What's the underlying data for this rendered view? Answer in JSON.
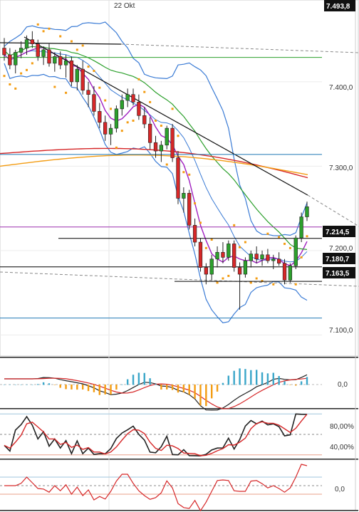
{
  "chart_data": {
    "type": "candlestick",
    "date_label": "22 Okt",
    "y_ticks": [
      "7.400,0",
      "7.300,0",
      "7.200,0",
      "7.100,0"
    ],
    "y_tick_values": [
      7400,
      7300,
      7200,
      7100
    ],
    "ylim": [
      7075,
      7497
    ],
    "price_tags": [
      {
        "label": "7.493,8",
        "value": 7493.8
      },
      {
        "label": "7.214,5",
        "value": 7214.5
      },
      {
        "label": "7.180,7",
        "value": 7180.7
      },
      {
        "label": "7.163,5",
        "value": 7163.5
      }
    ],
    "horizontal_levels": [
      {
        "value": 7429,
        "color": "#2ca02c"
      },
      {
        "value": 7314,
        "color": "#1f77b4"
      },
      {
        "value": 7228,
        "color": "#9b2fae"
      },
      {
        "value": 7214.5,
        "color": "#000000"
      },
      {
        "value": 7180.7,
        "color": "#000000"
      },
      {
        "value": 7163.5,
        "color": "#000000"
      },
      {
        "value": 7120,
        "color": "#1f77b4"
      }
    ],
    "candles": [
      {
        "o": 7440,
        "h": 7452,
        "l": 7425,
        "c": 7432
      },
      {
        "o": 7432,
        "h": 7440,
        "l": 7415,
        "c": 7420
      },
      {
        "o": 7420,
        "h": 7438,
        "l": 7410,
        "c": 7435
      },
      {
        "o": 7435,
        "h": 7448,
        "l": 7428,
        "c": 7440
      },
      {
        "o": 7440,
        "h": 7455,
        "l": 7432,
        "c": 7450
      },
      {
        "o": 7450,
        "h": 7460,
        "l": 7440,
        "c": 7445
      },
      {
        "o": 7445,
        "h": 7450,
        "l": 7425,
        "c": 7430
      },
      {
        "o": 7430,
        "h": 7442,
        "l": 7420,
        "c": 7438
      },
      {
        "o": 7438,
        "h": 7445,
        "l": 7418,
        "c": 7422
      },
      {
        "o": 7422,
        "h": 7435,
        "l": 7412,
        "c": 7430
      },
      {
        "o": 7430,
        "h": 7436,
        "l": 7415,
        "c": 7420
      },
      {
        "o": 7420,
        "h": 7432,
        "l": 7405,
        "c": 7425
      },
      {
        "o": 7425,
        "h": 7430,
        "l": 7395,
        "c": 7400
      },
      {
        "o": 7400,
        "h": 7420,
        "l": 7390,
        "c": 7415
      },
      {
        "o": 7415,
        "h": 7425,
        "l": 7385,
        "c": 7390
      },
      {
        "o": 7390,
        "h": 7400,
        "l": 7370,
        "c": 7385
      },
      {
        "o": 7385,
        "h": 7395,
        "l": 7360,
        "c": 7365
      },
      {
        "o": 7365,
        "h": 7375,
        "l": 7345,
        "c": 7352
      },
      {
        "o": 7352,
        "h": 7360,
        "l": 7330,
        "c": 7338
      },
      {
        "o": 7338,
        "h": 7350,
        "l": 7325,
        "c": 7345
      },
      {
        "o": 7345,
        "h": 7372,
        "l": 7340,
        "c": 7368
      },
      {
        "o": 7368,
        "h": 7385,
        "l": 7360,
        "c": 7378
      },
      {
        "o": 7378,
        "h": 7392,
        "l": 7370,
        "c": 7385
      },
      {
        "o": 7385,
        "h": 7392,
        "l": 7372,
        "c": 7376
      },
      {
        "o": 7376,
        "h": 7385,
        "l": 7355,
        "c": 7360
      },
      {
        "o": 7360,
        "h": 7370,
        "l": 7345,
        "c": 7350
      },
      {
        "o": 7350,
        "h": 7358,
        "l": 7320,
        "c": 7328
      },
      {
        "o": 7328,
        "h": 7336,
        "l": 7310,
        "c": 7318
      },
      {
        "o": 7318,
        "h": 7330,
        "l": 7305,
        "c": 7325
      },
      {
        "o": 7325,
        "h": 7348,
        "l": 7320,
        "c": 7345
      },
      {
        "o": 7345,
        "h": 7350,
        "l": 7305,
        "c": 7310
      },
      {
        "o": 7310,
        "h": 7318,
        "l": 7255,
        "c": 7262
      },
      {
        "o": 7262,
        "h": 7275,
        "l": 7245,
        "c": 7268
      },
      {
        "o": 7268,
        "h": 7272,
        "l": 7225,
        "c": 7230
      },
      {
        "o": 7230,
        "h": 7238,
        "l": 7205,
        "c": 7210
      },
      {
        "o": 7210,
        "h": 7215,
        "l": 7175,
        "c": 7180
      },
      {
        "o": 7180,
        "h": 7185,
        "l": 7160,
        "c": 7172
      },
      {
        "o": 7172,
        "h": 7195,
        "l": 7165,
        "c": 7190
      },
      {
        "o": 7190,
        "h": 7205,
        "l": 7180,
        "c": 7198
      },
      {
        "o": 7198,
        "h": 7210,
        "l": 7185,
        "c": 7192
      },
      {
        "o": 7192,
        "h": 7212,
        "l": 7188,
        "c": 7208
      },
      {
        "o": 7208,
        "h": 7212,
        "l": 7175,
        "c": 7180
      },
      {
        "o": 7180,
        "h": 7186,
        "l": 7130,
        "c": 7172
      },
      {
        "o": 7172,
        "h": 7192,
        "l": 7168,
        "c": 7188
      },
      {
        "o": 7188,
        "h": 7200,
        "l": 7180,
        "c": 7196
      },
      {
        "o": 7196,
        "h": 7205,
        "l": 7185,
        "c": 7190
      },
      {
        "o": 7190,
        "h": 7200,
        "l": 7182,
        "c": 7195
      },
      {
        "o": 7195,
        "h": 7202,
        "l": 7185,
        "c": 7188
      },
      {
        "o": 7188,
        "h": 7195,
        "l": 7178,
        "c": 7190
      },
      {
        "o": 7190,
        "h": 7198,
        "l": 7182,
        "c": 7185
      },
      {
        "o": 7185,
        "h": 7190,
        "l": 7160,
        "c": 7165
      },
      {
        "o": 7165,
        "h": 7185,
        "l": 7162,
        "c": 7182
      },
      {
        "o": 7182,
        "h": 7218,
        "l": 7178,
        "c": 7215
      },
      {
        "o": 7215,
        "h": 7245,
        "l": 7210,
        "c": 7240
      },
      {
        "o": 7240,
        "h": 7258,
        "l": 7235,
        "c": 7252
      }
    ],
    "series": [
      {
        "name": "",
        "color": "#d62728",
        "values": [
          7310,
          7300,
          7290
        ]
      },
      {
        "name": "",
        "color": "#f39c12",
        "values": [
          7305,
          7300,
          7298
        ]
      }
    ],
    "panel_labels": {
      "macd_zero": "0,0",
      "stoch_upper": "80,00%",
      "stoch_lower": "40,00%",
      "momentum_zero": "0,0"
    }
  }
}
